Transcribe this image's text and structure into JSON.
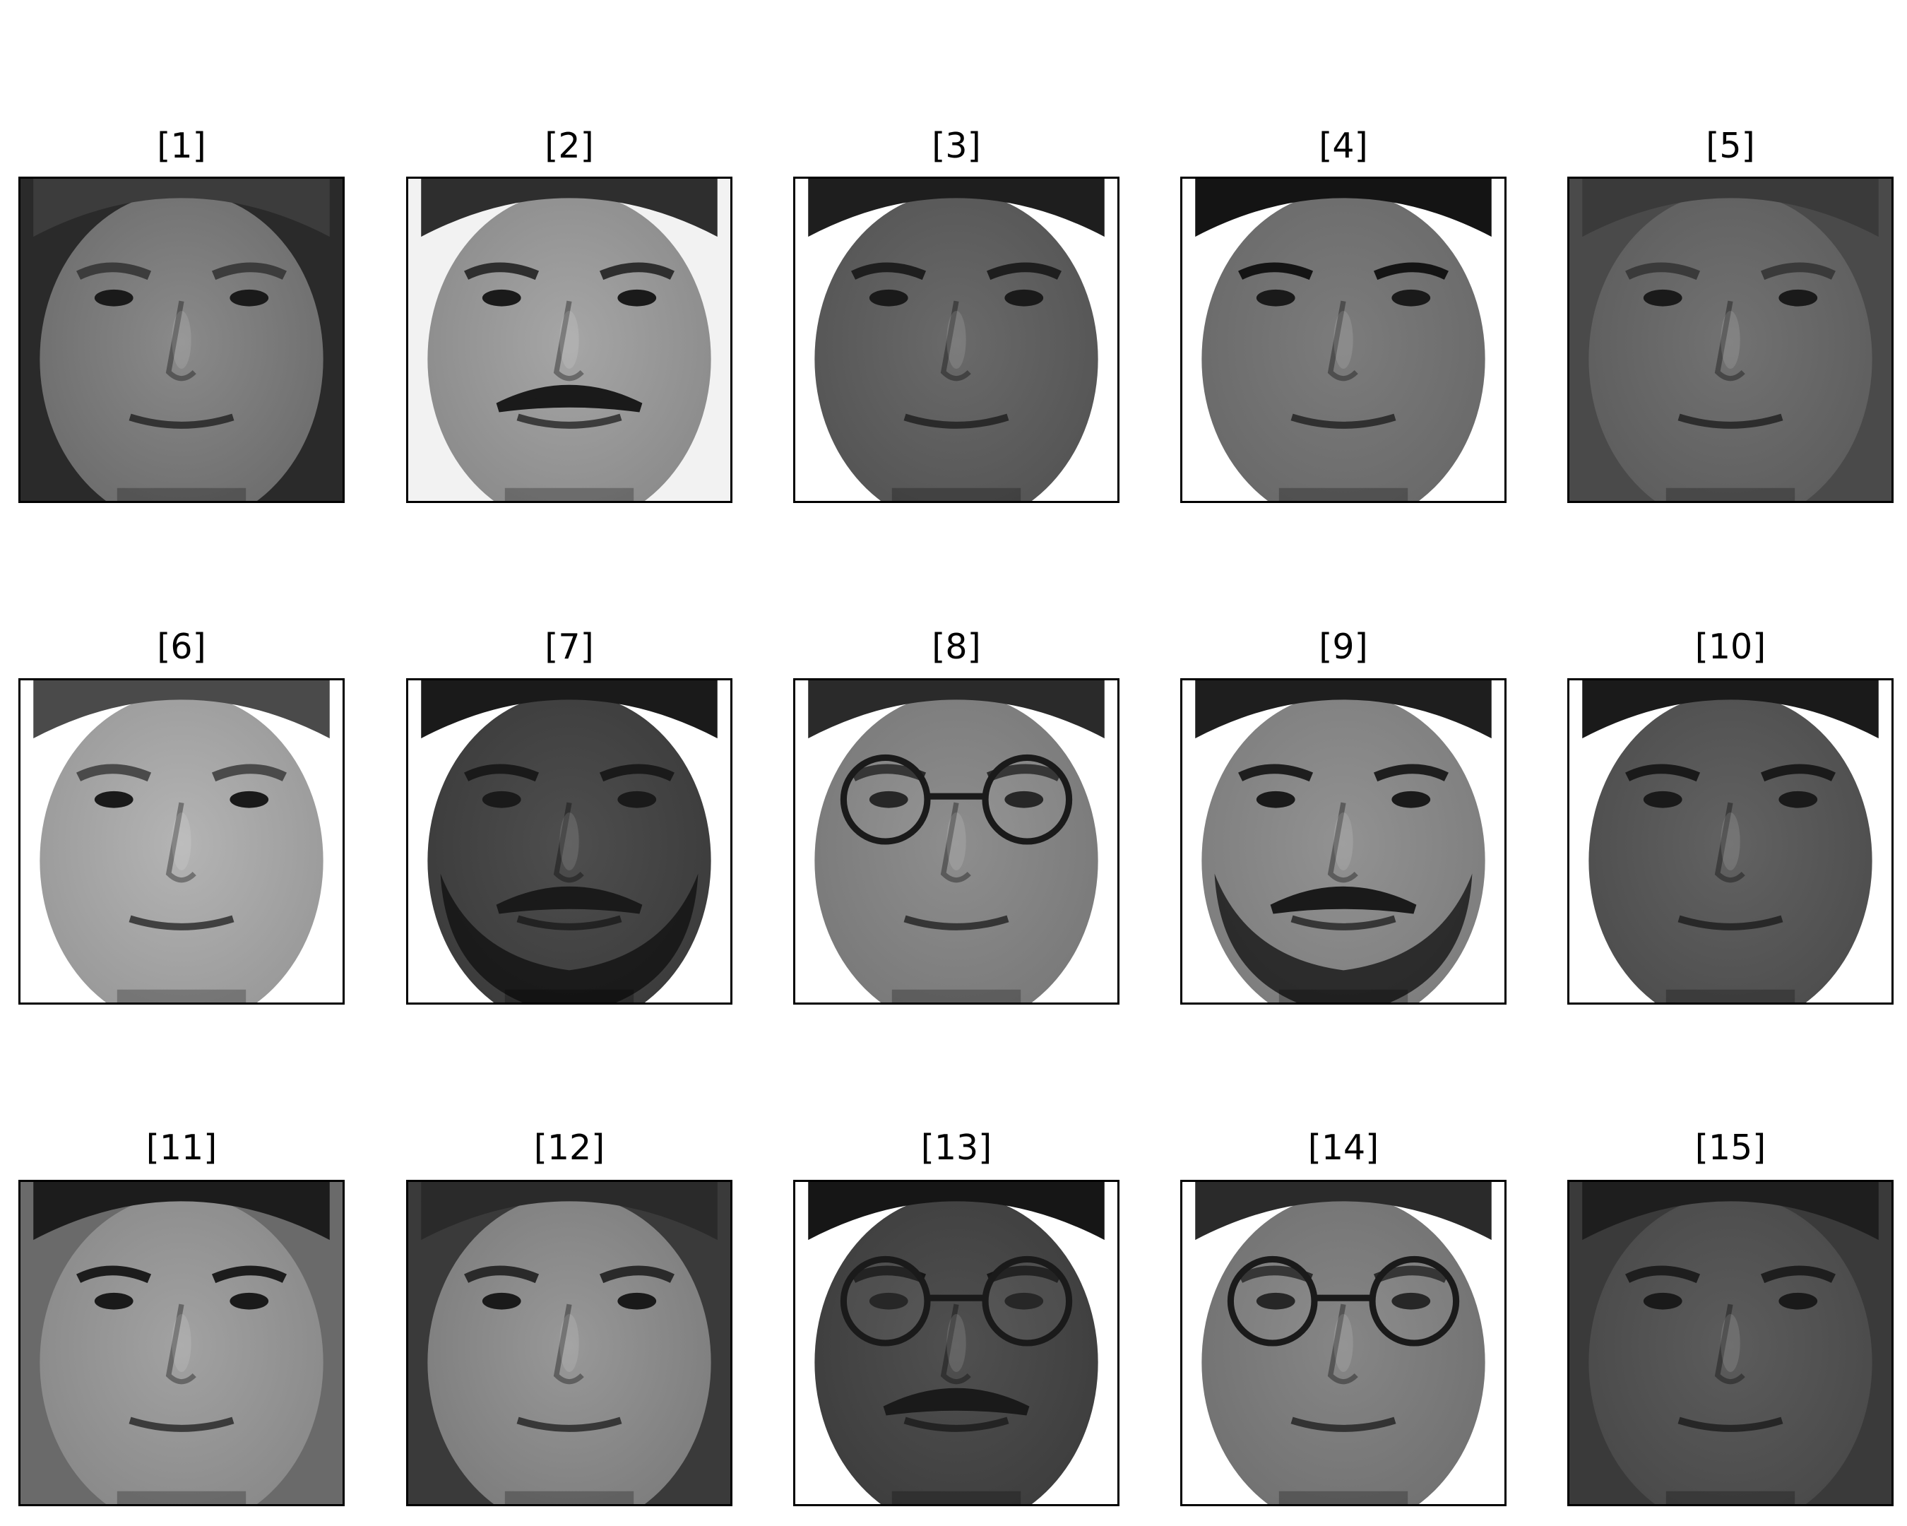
{
  "figure": {
    "type": "image-grid",
    "rows": 3,
    "columns": 5,
    "panels": [
      {
        "label": "[1]",
        "image": "grayscale-face-photo",
        "tone": "#6e6e6e",
        "skin": "#8a8a8a",
        "hair": "#3c3c3c",
        "background": "#2a2a2a",
        "glasses": false,
        "mustache": false,
        "beard": false
      },
      {
        "label": "[2]",
        "image": "grayscale-face-photo",
        "tone": "#8c8c8c",
        "skin": "#a6a6a6",
        "hair": "#2e2e2e",
        "background": "#f2f2f2",
        "glasses": false,
        "mustache": true,
        "beard": false
      },
      {
        "label": "[3]",
        "image": "grayscale-face-photo",
        "tone": "#555555",
        "skin": "#6a6a6a",
        "hair": "#1e1e1e",
        "background": "#ffffff",
        "glasses": false,
        "mustache": false,
        "beard": false
      },
      {
        "label": "[4]",
        "image": "grayscale-face-photo",
        "tone": "#6a6a6a",
        "skin": "#7c7c7c",
        "hair": "#141414",
        "background": "#ffffff",
        "glasses": false,
        "mustache": false,
        "beard": false
      },
      {
        "label": "[5]",
        "image": "grayscale-face-photo",
        "tone": "#5e5e5e",
        "skin": "#727272",
        "hair": "#3a3a3a",
        "background": "#4a4a4a",
        "glasses": false,
        "mustache": false,
        "beard": false
      },
      {
        "label": "[6]",
        "image": "grayscale-face-photo",
        "tone": "#9a9a9a",
        "skin": "#b4b4b4",
        "hair": "#4a4a4a",
        "background": "#ffffff",
        "glasses": false,
        "mustache": false,
        "beard": false
      },
      {
        "label": "[7]",
        "image": "grayscale-face-photo",
        "tone": "#3c3c3c",
        "skin": "#4e4e4e",
        "hair": "#1a1a1a",
        "background": "#ffffff",
        "glasses": false,
        "mustache": true,
        "beard": true
      },
      {
        "label": "[8]",
        "image": "grayscale-face-photo",
        "tone": "#7a7a7a",
        "skin": "#8e8e8e",
        "hair": "#2a2a2a",
        "background": "#ffffff",
        "glasses": true,
        "mustache": false,
        "beard": false
      },
      {
        "label": "[9]",
        "image": "grayscale-face-photo",
        "tone": "#7e7e7e",
        "skin": "#929292",
        "hair": "#1e1e1e",
        "background": "#ffffff",
        "glasses": false,
        "mustache": true,
        "beard": true
      },
      {
        "label": "[10]",
        "image": "grayscale-face-photo",
        "tone": "#4e4e4e",
        "skin": "#626262",
        "hair": "#1a1a1a",
        "background": "#ffffff",
        "glasses": false,
        "mustache": false,
        "beard": false
      },
      {
        "label": "[11]",
        "image": "grayscale-face-photo",
        "tone": "#8a8a8a",
        "skin": "#a2a2a2",
        "hair": "#1c1c1c",
        "background": "#6a6a6a",
        "glasses": false,
        "mustache": false,
        "beard": false
      },
      {
        "label": "[12]",
        "image": "grayscale-face-photo",
        "tone": "#7e7e7e",
        "skin": "#989898",
        "hair": "#2a2a2a",
        "background": "#3a3a3a",
        "glasses": false,
        "mustache": false,
        "beard": false
      },
      {
        "label": "[13]",
        "image": "grayscale-face-photo",
        "tone": "#3e3e3e",
        "skin": "#505050",
        "hair": "#161616",
        "background": "#ffffff",
        "glasses": true,
        "mustache": true,
        "beard": false
      },
      {
        "label": "[14]",
        "image": "grayscale-face-photo",
        "tone": "#727272",
        "skin": "#868686",
        "hair": "#2a2a2a",
        "background": "#ffffff",
        "glasses": true,
        "mustache": false,
        "beard": false
      },
      {
        "label": "[15]",
        "image": "grayscale-face-photo",
        "tone": "#4a4a4a",
        "skin": "#5c5c5c",
        "hair": "#1e1e1e",
        "background": "#3a3a3a",
        "glasses": false,
        "mustache": false,
        "beard": false
      }
    ]
  }
}
